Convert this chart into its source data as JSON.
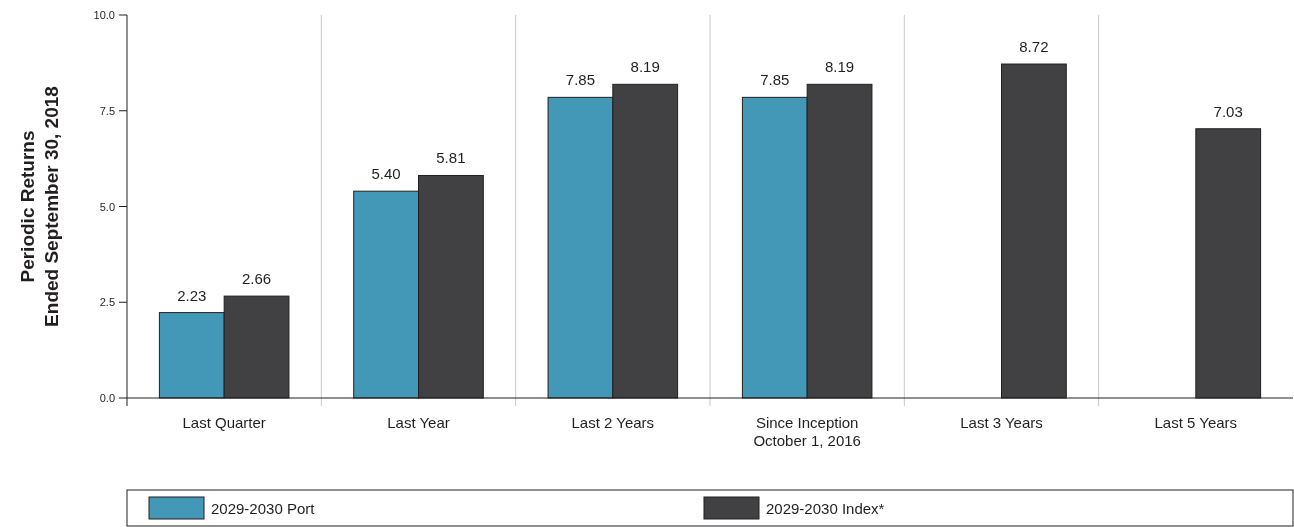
{
  "chart_data": {
    "type": "bar",
    "ylabel": "Periodic Returns\nEnded September 30, 2018",
    "categories": [
      "Last Quarter",
      "Last Year",
      "Last 2 Years",
      "Since Inception\nOctober 1, 2016",
      "Last 3 Years",
      "Last 5 Years"
    ],
    "series": [
      {
        "name": "2029-2030 Port",
        "color": "#4398b8",
        "values": [
          2.23,
          5.4,
          7.85,
          7.85,
          null,
          null
        ],
        "value_labels": [
          "2.23",
          "5.40",
          "7.85",
          "7.85",
          null,
          null
        ]
      },
      {
        "name": "2029-2030 Index*",
        "color": "#414042",
        "values": [
          2.66,
          5.81,
          8.19,
          8.19,
          8.72,
          7.03
        ],
        "value_labels": [
          "2.66",
          "5.81",
          "8.19",
          "8.19",
          "8.72",
          "7.03"
        ]
      }
    ],
    "ylim": [
      0,
      10
    ],
    "yticks": [
      {
        "value": 0,
        "label": "0.0"
      },
      {
        "value": 2.5,
        "label": "2.5"
      },
      {
        "value": 5,
        "label": "5.0"
      },
      {
        "value": 7.5,
        "label": "7.5"
      },
      {
        "value": 10,
        "label": "10.0"
      }
    ],
    "grid": "x",
    "legend": "bottom"
  }
}
